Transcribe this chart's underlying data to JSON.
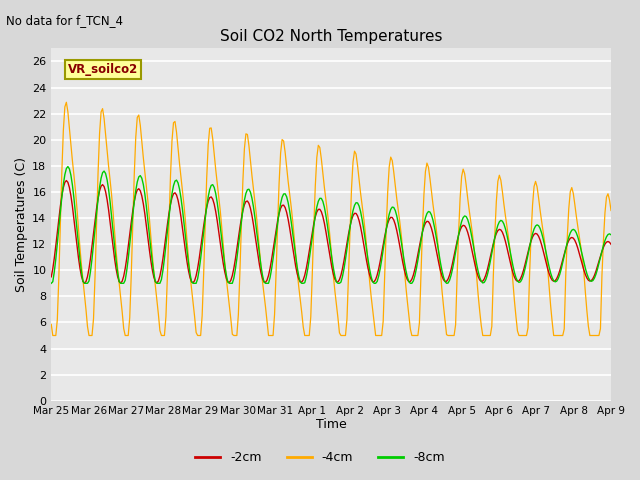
{
  "title": "Soil CO2 North Temperatures",
  "subtitle": "No data for f_TCN_4",
  "xlabel": "Time",
  "ylabel": "Soil Temperatures (C)",
  "ylim": [
    0,
    27
  ],
  "yticks": [
    0,
    2,
    4,
    6,
    8,
    10,
    12,
    14,
    16,
    18,
    20,
    22,
    24,
    26
  ],
  "x_labels": [
    "Mar 25",
    "Mar 26",
    "Mar 27",
    "Mar 28",
    "Mar 29",
    "Mar 30",
    "Mar 31",
    "Apr 1",
    "Apr 2",
    "Apr 3",
    "Apr 4",
    "Apr 5",
    "Apr 6",
    "Apr 7",
    "Apr 8",
    "Apr 9"
  ],
  "legend_label": "VR_soilco2",
  "legend_entries": [
    "-2cm",
    "-4cm",
    "-8cm"
  ],
  "legend_colors": [
    "#cc0000",
    "#ffaa00",
    "#00cc00"
  ],
  "bg_color": "#d8d8d8",
  "plot_bg_color": "#e8e8e8",
  "grid_color": "#ffffff",
  "color_2cm": "#cc0000",
  "color_4cm": "#ffaa00",
  "color_8cm": "#00cc00",
  "n_days": 15.5
}
